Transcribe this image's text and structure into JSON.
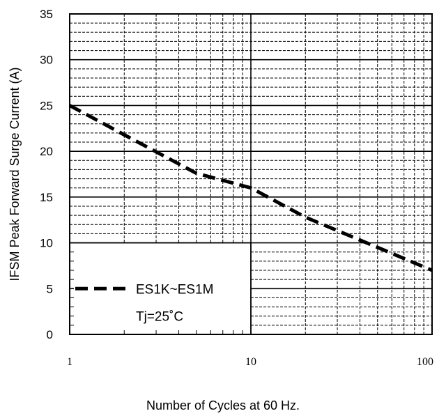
{
  "chart_data": {
    "type": "line",
    "xscale": "log",
    "xlim": [
      1,
      100
    ],
    "ylim": [
      0,
      35
    ],
    "xticks": [
      1,
      10,
      100
    ],
    "xtick_labels": [
      "1",
      "10",
      "100"
    ],
    "yticks": [
      0,
      5,
      10,
      15,
      20,
      25,
      30,
      35
    ],
    "ytick_labels": [
      "0",
      "5",
      "10",
      "15",
      "20",
      "25",
      "30",
      "35"
    ],
    "xlabel": "Number  of  Cycles at 60 Hz.",
    "ylabel": "IFSM  Peak Forward Surge Current (A)",
    "grid": true,
    "legend_position": "bottom-left",
    "series": [
      {
        "name": "ES1K~ES1M",
        "style": "dashed",
        "color": "#000000",
        "x": [
          1,
          2,
          5,
          10,
          20,
          50,
          100
        ],
        "y": [
          25,
          21.8,
          17.6,
          16,
          12.8,
          9.5,
          7
        ]
      }
    ],
    "annotation": "Tj=25˚C"
  }
}
